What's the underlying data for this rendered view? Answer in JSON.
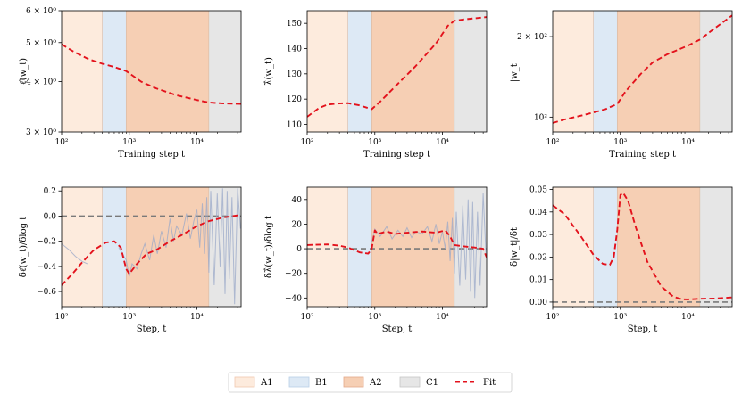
{
  "legend": [
    {
      "label": "A1",
      "color": "#fdebdd",
      "edge": "#f0c8b0",
      "kind": "patch"
    },
    {
      "label": "B1",
      "color": "#dde9f5",
      "edge": "#b9cfe6",
      "kind": "patch"
    },
    {
      "label": "A2",
      "color": "#f6cfb4",
      "edge": "#e3a98a",
      "kind": "patch"
    },
    {
      "label": "C1",
      "color": "#e6e6e6",
      "edge": "#c6c6c6",
      "kind": "patch"
    },
    {
      "label": "Fit",
      "color": "#e3121c",
      "kind": "line"
    }
  ],
  "colors": {
    "A1": "#fdebdd",
    "B1": "#dde9f5",
    "A2": "#f6cfb4",
    "C1": "#e6e6e6",
    "fit": "#e3121c",
    "raw": "#9aa8c8",
    "zero": "#7a7a7a"
  },
  "chart_data": [
    {
      "id": "p1",
      "type": "line",
      "xscale": "log",
      "yscale": "log",
      "xlim": [
        100,
        45000
      ],
      "ylim": [
        3,
        6
      ],
      "phases": [
        [
          "A1",
          100,
          400
        ],
        [
          "B1",
          400,
          900
        ],
        [
          "A2",
          900,
          15000
        ],
        [
          "C1",
          15000,
          45000
        ]
      ],
      "xlabel": "Training step t",
      "ylabel": "ℓ̂(w_t)",
      "xticks": [
        {
          "v": 100,
          "label": "10²"
        },
        {
          "v": 1000,
          "label": "10³"
        },
        {
          "v": 10000,
          "label": "10⁴"
        }
      ],
      "yticks": [
        {
          "v": 3,
          "label": "3 × 10⁰"
        },
        {
          "v": 4,
          "label": "4 × 10⁰"
        },
        {
          "v": 5,
          "label": "5 × 10⁰"
        },
        {
          "v": 6,
          "label": "6 × 10⁰"
        }
      ],
      "series": [
        {
          "name": "Fit",
          "style": "fit",
          "x": [
            100,
            150,
            250,
            400,
            600,
            900,
            1500,
            2500,
            5000,
            10000,
            15000,
            25000,
            45000
          ],
          "y": [
            4.95,
            4.75,
            4.55,
            4.43,
            4.35,
            4.25,
            4.0,
            3.85,
            3.7,
            3.6,
            3.55,
            3.53,
            3.52
          ]
        }
      ]
    },
    {
      "id": "p2",
      "type": "line",
      "xscale": "log",
      "yscale": "linear",
      "xlim": [
        100,
        45000
      ],
      "ylim": [
        107,
        155
      ],
      "phases": [
        [
          "A1",
          100,
          400
        ],
        [
          "B1",
          400,
          900
        ],
        [
          "A2",
          900,
          15000
        ],
        [
          "C1",
          15000,
          45000
        ]
      ],
      "xlabel": "Training step t",
      "ylabel": "λ̂(w_t)",
      "xticks": [
        {
          "v": 100,
          "label": "10²"
        },
        {
          "v": 1000,
          "label": "10³"
        },
        {
          "v": 10000,
          "label": "10⁴"
        }
      ],
      "yticks": [
        {
          "v": 110,
          "label": "110"
        },
        {
          "v": 120,
          "label": "120"
        },
        {
          "v": 130,
          "label": "130"
        },
        {
          "v": 140,
          "label": "140"
        },
        {
          "v": 150,
          "label": "150"
        }
      ],
      "series": [
        {
          "name": "Fit",
          "style": "fit",
          "x": [
            100,
            150,
            200,
            300,
            400,
            600,
            900,
            1200,
            2000,
            4000,
            8000,
            12000,
            15000,
            20000,
            30000,
            45000
          ],
          "y": [
            113,
            116.5,
            117.8,
            118.3,
            118.4,
            117.5,
            116,
            119,
            125,
            133,
            142,
            149,
            151,
            151.5,
            152,
            152.5
          ]
        }
      ]
    },
    {
      "id": "p3",
      "type": "line",
      "xscale": "log",
      "yscale": "log",
      "xlim": [
        100,
        45000
      ],
      "ylim": [
        88,
        250
      ],
      "phases": [
        [
          "A1",
          100,
          400
        ],
        [
          "B1",
          400,
          900
        ],
        [
          "A2",
          900,
          15000
        ],
        [
          "C1",
          15000,
          45000
        ]
      ],
      "xlabel": "Training step t",
      "ylabel": "|w_t|",
      "xticks": [
        {
          "v": 100,
          "label": "10²"
        },
        {
          "v": 1000,
          "label": "10³"
        },
        {
          "v": 10000,
          "label": "10⁴"
        }
      ],
      "yticks": [
        {
          "v": 100,
          "label": "10²"
        },
        {
          "v": 200,
          "label": "2 × 10²"
        }
      ],
      "series": [
        {
          "name": "Fit",
          "style": "fit",
          "x": [
            100,
            150,
            250,
            400,
            600,
            900,
            1200,
            2000,
            3000,
            5000,
            10000,
            15000,
            25000,
            45000
          ],
          "y": [
            95,
            98,
            101,
            104,
            107,
            112,
            125,
            145,
            160,
            172,
            185,
            195,
            215,
            240
          ]
        }
      ]
    },
    {
      "id": "p4",
      "type": "line",
      "xscale": "log",
      "yscale": "linear",
      "xlim": [
        100,
        45000
      ],
      "ylim": [
        -0.72,
        0.23
      ],
      "phases": [
        [
          "A1",
          100,
          400
        ],
        [
          "B1",
          400,
          900
        ],
        [
          "A2",
          900,
          15000
        ],
        [
          "C1",
          15000,
          45000
        ]
      ],
      "xlabel": "Step, t",
      "ylabel": "δℓ̂(w_t)/δlog t",
      "xticks": [
        {
          "v": 100,
          "label": "10²"
        },
        {
          "v": 1000,
          "label": "10³"
        },
        {
          "v": 10000,
          "label": "10⁴"
        }
      ],
      "yticks": [
        {
          "v": -0.6,
          "label": "−0.6"
        },
        {
          "v": -0.4,
          "label": "−0.4"
        },
        {
          "v": -0.2,
          "label": "−0.2"
        },
        {
          "v": 0,
          "label": "0.0"
        },
        {
          "v": 0.2,
          "label": "0.2"
        }
      ],
      "hline": 0,
      "series": [
        {
          "name": "raw",
          "style": "raw",
          "x": [
            100,
            130,
            160,
            200,
            240
          ],
          "y": [
            -0.22,
            -0.27,
            -0.32,
            -0.36,
            -0.38
          ]
        },
        {
          "name": "raw",
          "style": "raw",
          "x": [
            700,
            900,
            1000,
            1100,
            1300,
            1500,
            1700,
            2000,
            2300,
            2600,
            3000,
            3500,
            4000,
            4500,
            5000,
            6000,
            7000,
            8000,
            9000,
            10000,
            11000,
            12000,
            13000,
            14000,
            15000,
            16000,
            18000,
            20000,
            22000,
            24000,
            26000,
            28000,
            30000,
            33000,
            36000,
            40000,
            44000
          ],
          "y": [
            -0.25,
            -0.35,
            -0.48,
            -0.38,
            -0.42,
            -0.3,
            -0.22,
            -0.35,
            -0.15,
            -0.3,
            -0.12,
            -0.25,
            -0.02,
            -0.2,
            -0.08,
            -0.15,
            0.02,
            -0.18,
            -0.04,
            0.05,
            -0.25,
            0.1,
            -0.3,
            0.15,
            -0.45,
            0.2,
            -0.55,
            0.18,
            -0.4,
            0.22,
            -0.62,
            0.2,
            -0.5,
            0.15,
            -0.7,
            0.22,
            -0.1
          ]
        },
        {
          "name": "Fit",
          "style": "fit",
          "x": [
            100,
            150,
            200,
            300,
            450,
            600,
            750,
            900,
            1000,
            1300,
            1800,
            2500,
            4000,
            6000,
            10000,
            15000,
            25000,
            45000
          ],
          "y": [
            -0.55,
            -0.45,
            -0.37,
            -0.27,
            -0.21,
            -0.2,
            -0.25,
            -0.42,
            -0.46,
            -0.38,
            -0.3,
            -0.27,
            -0.2,
            -0.15,
            -0.08,
            -0.04,
            -0.01,
            0.01
          ]
        }
      ]
    },
    {
      "id": "p5",
      "type": "line",
      "xscale": "log",
      "yscale": "linear",
      "xlim": [
        100,
        45000
      ],
      "ylim": [
        -47,
        50
      ],
      "phases": [
        [
          "A1",
          100,
          400
        ],
        [
          "B1",
          400,
          900
        ],
        [
          "A2",
          900,
          15000
        ],
        [
          "C1",
          15000,
          45000
        ]
      ],
      "xlabel": "Step, t",
      "ylabel": "δλ̂(w_t)/δlog t",
      "xticks": [
        {
          "v": 100,
          "label": "10²"
        },
        {
          "v": 1000,
          "label": "10³"
        },
        {
          "v": 10000,
          "label": "10⁴"
        }
      ],
      "yticks": [
        {
          "v": -40,
          "label": "−40"
        },
        {
          "v": -20,
          "label": "−20"
        },
        {
          "v": 0,
          "label": "0"
        },
        {
          "v": 20,
          "label": "20"
        },
        {
          "v": 40,
          "label": "40"
        }
      ],
      "hline": 0,
      "series": [
        {
          "name": "raw",
          "style": "raw",
          "x": [
            900,
            1000,
            1200,
            1500,
            1800,
            2200,
            2600,
            3000,
            3500,
            4000,
            5000,
            6000,
            7000,
            8000,
            9000,
            10000,
            11000,
            12000,
            13000,
            14000,
            15000,
            16000,
            18000,
            20000,
            22000,
            24000,
            26000,
            28000,
            30000,
            33000,
            36000,
            40000,
            44000
          ],
          "y": [
            5,
            16,
            10,
            18,
            8,
            15,
            10,
            17,
            9,
            14,
            12,
            18,
            6,
            20,
            4,
            14,
            0,
            22,
            -10,
            25,
            -20,
            30,
            -30,
            35,
            -25,
            40,
            -35,
            38,
            -40,
            30,
            -30,
            45,
            -5
          ]
        },
        {
          "name": "Fit",
          "style": "fit",
          "x": [
            100,
            200,
            300,
            400,
            600,
            800,
            900,
            1000,
            1100,
            1500,
            2000,
            3000,
            5000,
            8000,
            11000,
            13000,
            15000,
            20000,
            30000,
            40000,
            45000
          ],
          "y": [
            3,
            3.5,
            2.5,
            1,
            -3,
            -4,
            0,
            15,
            12,
            14,
            12,
            13,
            14,
            13,
            15,
            10,
            3,
            2,
            1,
            0,
            -7
          ]
        }
      ]
    },
    {
      "id": "p6",
      "type": "line",
      "xscale": "log",
      "yscale": "linear",
      "xlim": [
        100,
        45000
      ],
      "ylim": [
        -0.002,
        0.051
      ],
      "phases": [
        [
          "A1",
          100,
          400
        ],
        [
          "B1",
          400,
          900
        ],
        [
          "A2",
          900,
          15000
        ],
        [
          "C1",
          15000,
          45000
        ]
      ],
      "xlabel": "Step, t",
      "ylabel": "δ|w_t|/δt",
      "xticks": [
        {
          "v": 100,
          "label": "10²"
        },
        {
          "v": 1000,
          "label": "10³"
        },
        {
          "v": 10000,
          "label": "10⁴"
        }
      ],
      "yticks": [
        {
          "v": 0,
          "label": "0.00"
        },
        {
          "v": 0.01,
          "label": "0.01"
        },
        {
          "v": 0.02,
          "label": "0.02"
        },
        {
          "v": 0.03,
          "label": "0.03"
        },
        {
          "v": 0.04,
          "label": "0.04"
        },
        {
          "v": 0.05,
          "label": "0.05"
        }
      ],
      "hline": 0,
      "series": [
        {
          "name": "Fit",
          "style": "fit",
          "x": [
            100,
            150,
            250,
            400,
            550,
            700,
            800,
            900,
            1000,
            1100,
            1300,
            1700,
            2500,
            4000,
            6000,
            8000,
            10000,
            15000,
            25000,
            45000
          ],
          "y": [
            0.043,
            0.039,
            0.03,
            0.021,
            0.017,
            0.0165,
            0.02,
            0.032,
            0.0475,
            0.0485,
            0.045,
            0.033,
            0.018,
            0.007,
            0.0025,
            0.0013,
            0.0012,
            0.0015,
            0.0016,
            0.0021
          ]
        }
      ]
    }
  ]
}
